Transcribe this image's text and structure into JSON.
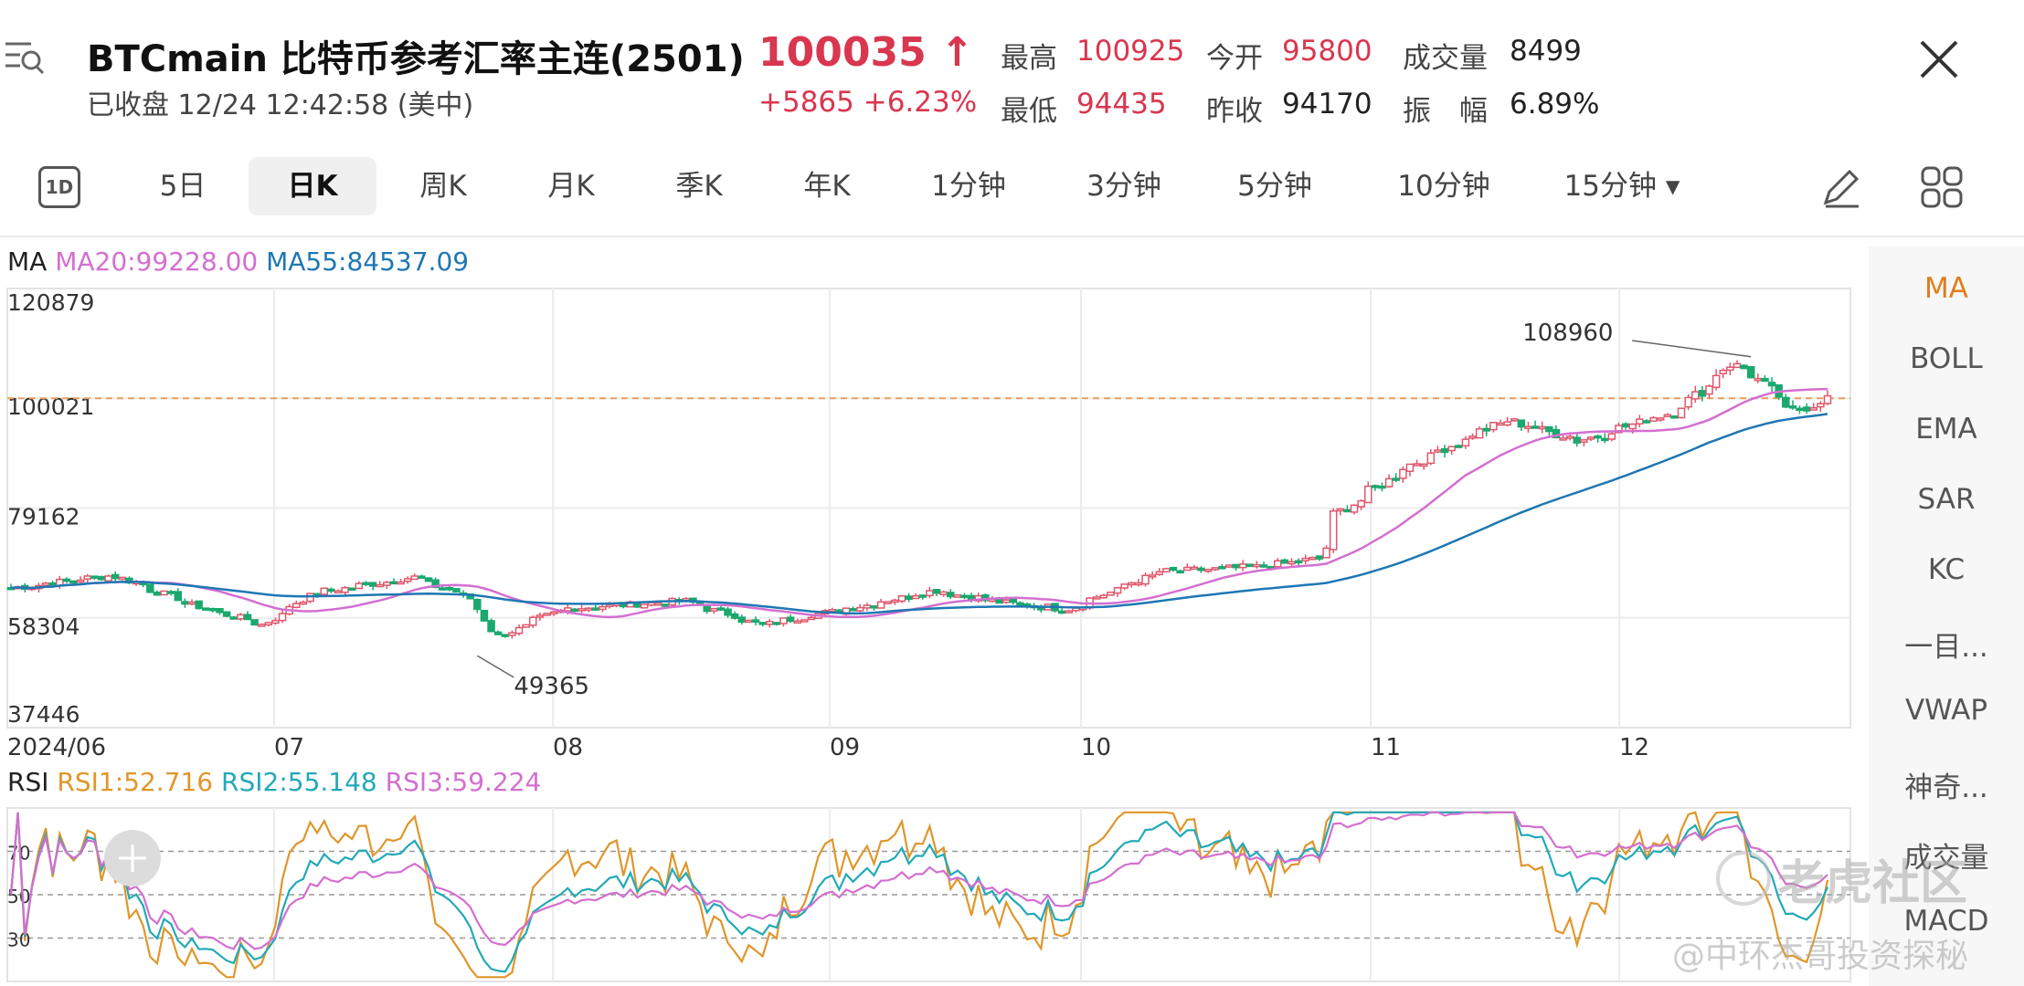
{
  "header": {
    "title": "BTCmain  比特币参考汇率主连(2501)",
    "status": "已收盘  12/24 12:42:58 (美中)",
    "price": "100035",
    "price_arrow": "↑",
    "change": "+5865  +6.23%",
    "stats": [
      {
        "label": "最高",
        "value": "100925",
        "color": "red"
      },
      {
        "label": "最低",
        "value": "94435",
        "color": "red"
      },
      {
        "label": "今开",
        "value": "95800",
        "color": "red"
      },
      {
        "label": "昨收",
        "value": "94170",
        "color": "dark"
      },
      {
        "label": "成交量",
        "value": "8499",
        "color": "dark"
      },
      {
        "label": "振　幅",
        "value": "6.89%",
        "color": "dark"
      }
    ]
  },
  "icons": {
    "menu": "menu-search-icon",
    "close": "close-icon",
    "draw": "pencil-icon",
    "layout": "grid-icon"
  },
  "tabs": [
    {
      "label": "1D"
    },
    {
      "label": "5日"
    },
    {
      "label": "日K"
    },
    {
      "label": "周K"
    },
    {
      "label": "月K"
    },
    {
      "label": "季K"
    },
    {
      "label": "年K"
    },
    {
      "label": "1分钟"
    },
    {
      "label": "3分钟"
    },
    {
      "label": "5分钟"
    },
    {
      "label": "10分钟"
    },
    {
      "label": "15分钟 ▾"
    }
  ],
  "active_tab": "日K",
  "indicators": [
    "MA",
    "BOLL",
    "EMA",
    "SAR",
    "KC",
    "一目...",
    "VWAP",
    "神奇...",
    "成交量",
    "MACD"
  ],
  "active_indicator": "MA",
  "ma_legend": {
    "label": "MA",
    "ma20": "MA20:99228.00",
    "ma55": "MA55:84537.09"
  },
  "rsi_legend": {
    "label": "RSI",
    "rsi1": "RSI1:52.716",
    "rsi2": "RSI2:55.148",
    "rsi3": "RSI3:59.224"
  },
  "colors": {
    "up": "#e0566c",
    "down": "#1aa86e",
    "ma20": "#d36fd0",
    "ma55": "#1f77b4",
    "rsi1": "#e0962a",
    "rsi2": "#22a9b8",
    "rsi3": "#d36fd0",
    "ref_line": "#e8a060"
  },
  "watermark": {
    "brand": "老虎社区",
    "author": "@中环杰哥投资探秘"
  },
  "chart_data": [
    {
      "type": "candlestick",
      "y_ticks": [
        "120879",
        "100021",
        "79162",
        "58304",
        "37446"
      ],
      "ylim": [
        37446,
        120879
      ],
      "x_ticks": [
        "2024/06",
        "07",
        "08",
        "09",
        "10",
        "11",
        "12"
      ],
      "reference_line": 100021,
      "annotations": [
        {
          "text": "108960",
          "value": 108960
        },
        {
          "text": "49365",
          "value": 49365
        }
      ],
      "last_price": 100035
    },
    {
      "type": "line",
      "name": "RSI",
      "y_ticks": [
        "70",
        "50",
        "30"
      ],
      "ylim": [
        10,
        90
      ],
      "series": [
        "RSI1",
        "RSI2",
        "RSI3"
      ]
    }
  ]
}
